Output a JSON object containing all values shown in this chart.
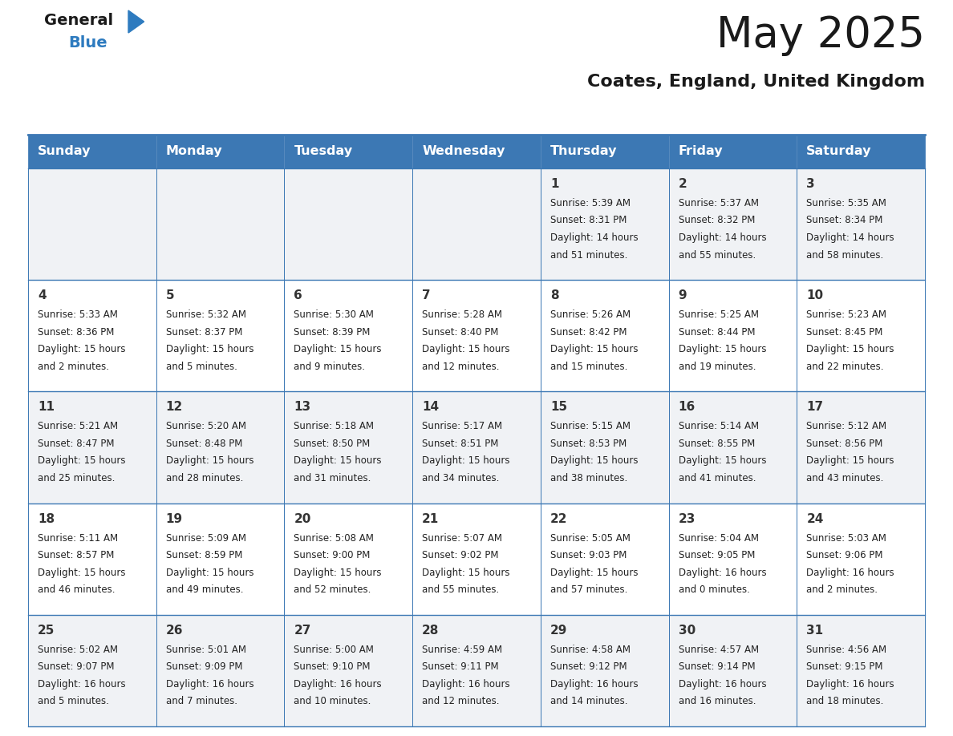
{
  "title": "May 2025",
  "subtitle": "Coates, England, United Kingdom",
  "header_bg": "#3c78b4",
  "header_text_color": "#ffffff",
  "cell_bg": "#f0f2f5",
  "cell_bg_white": "#ffffff",
  "text_color": "#222222",
  "day_num_color": "#333333",
  "line_color": "#3c78b4",
  "logo_blue": "#2e7bbf",
  "logo_text_color": "#1a1a1a",
  "days_of_week": [
    "Sunday",
    "Monday",
    "Tuesday",
    "Wednesday",
    "Thursday",
    "Friday",
    "Saturday"
  ],
  "calendar": [
    [
      {
        "day": "",
        "info": ""
      },
      {
        "day": "",
        "info": ""
      },
      {
        "day": "",
        "info": ""
      },
      {
        "day": "",
        "info": ""
      },
      {
        "day": "1",
        "info": "Sunrise: 5:39 AM\nSunset: 8:31 PM\nDaylight: 14 hours\nand 51 minutes."
      },
      {
        "day": "2",
        "info": "Sunrise: 5:37 AM\nSunset: 8:32 PM\nDaylight: 14 hours\nand 55 minutes."
      },
      {
        "day": "3",
        "info": "Sunrise: 5:35 AM\nSunset: 8:34 PM\nDaylight: 14 hours\nand 58 minutes."
      }
    ],
    [
      {
        "day": "4",
        "info": "Sunrise: 5:33 AM\nSunset: 8:36 PM\nDaylight: 15 hours\nand 2 minutes."
      },
      {
        "day": "5",
        "info": "Sunrise: 5:32 AM\nSunset: 8:37 PM\nDaylight: 15 hours\nand 5 minutes."
      },
      {
        "day": "6",
        "info": "Sunrise: 5:30 AM\nSunset: 8:39 PM\nDaylight: 15 hours\nand 9 minutes."
      },
      {
        "day": "7",
        "info": "Sunrise: 5:28 AM\nSunset: 8:40 PM\nDaylight: 15 hours\nand 12 minutes."
      },
      {
        "day": "8",
        "info": "Sunrise: 5:26 AM\nSunset: 8:42 PM\nDaylight: 15 hours\nand 15 minutes."
      },
      {
        "day": "9",
        "info": "Sunrise: 5:25 AM\nSunset: 8:44 PM\nDaylight: 15 hours\nand 19 minutes."
      },
      {
        "day": "10",
        "info": "Sunrise: 5:23 AM\nSunset: 8:45 PM\nDaylight: 15 hours\nand 22 minutes."
      }
    ],
    [
      {
        "day": "11",
        "info": "Sunrise: 5:21 AM\nSunset: 8:47 PM\nDaylight: 15 hours\nand 25 minutes."
      },
      {
        "day": "12",
        "info": "Sunrise: 5:20 AM\nSunset: 8:48 PM\nDaylight: 15 hours\nand 28 minutes."
      },
      {
        "day": "13",
        "info": "Sunrise: 5:18 AM\nSunset: 8:50 PM\nDaylight: 15 hours\nand 31 minutes."
      },
      {
        "day": "14",
        "info": "Sunrise: 5:17 AM\nSunset: 8:51 PM\nDaylight: 15 hours\nand 34 minutes."
      },
      {
        "day": "15",
        "info": "Sunrise: 5:15 AM\nSunset: 8:53 PM\nDaylight: 15 hours\nand 38 minutes."
      },
      {
        "day": "16",
        "info": "Sunrise: 5:14 AM\nSunset: 8:55 PM\nDaylight: 15 hours\nand 41 minutes."
      },
      {
        "day": "17",
        "info": "Sunrise: 5:12 AM\nSunset: 8:56 PM\nDaylight: 15 hours\nand 43 minutes."
      }
    ],
    [
      {
        "day": "18",
        "info": "Sunrise: 5:11 AM\nSunset: 8:57 PM\nDaylight: 15 hours\nand 46 minutes."
      },
      {
        "day": "19",
        "info": "Sunrise: 5:09 AM\nSunset: 8:59 PM\nDaylight: 15 hours\nand 49 minutes."
      },
      {
        "day": "20",
        "info": "Sunrise: 5:08 AM\nSunset: 9:00 PM\nDaylight: 15 hours\nand 52 minutes."
      },
      {
        "day": "21",
        "info": "Sunrise: 5:07 AM\nSunset: 9:02 PM\nDaylight: 15 hours\nand 55 minutes."
      },
      {
        "day": "22",
        "info": "Sunrise: 5:05 AM\nSunset: 9:03 PM\nDaylight: 15 hours\nand 57 minutes."
      },
      {
        "day": "23",
        "info": "Sunrise: 5:04 AM\nSunset: 9:05 PM\nDaylight: 16 hours\nand 0 minutes."
      },
      {
        "day": "24",
        "info": "Sunrise: 5:03 AM\nSunset: 9:06 PM\nDaylight: 16 hours\nand 2 minutes."
      }
    ],
    [
      {
        "day": "25",
        "info": "Sunrise: 5:02 AM\nSunset: 9:07 PM\nDaylight: 16 hours\nand 5 minutes."
      },
      {
        "day": "26",
        "info": "Sunrise: 5:01 AM\nSunset: 9:09 PM\nDaylight: 16 hours\nand 7 minutes."
      },
      {
        "day": "27",
        "info": "Sunrise: 5:00 AM\nSunset: 9:10 PM\nDaylight: 16 hours\nand 10 minutes."
      },
      {
        "day": "28",
        "info": "Sunrise: 4:59 AM\nSunset: 9:11 PM\nDaylight: 16 hours\nand 12 minutes."
      },
      {
        "day": "29",
        "info": "Sunrise: 4:58 AM\nSunset: 9:12 PM\nDaylight: 16 hours\nand 14 minutes."
      },
      {
        "day": "30",
        "info": "Sunrise: 4:57 AM\nSunset: 9:14 PM\nDaylight: 16 hours\nand 16 minutes."
      },
      {
        "day": "31",
        "info": "Sunrise: 4:56 AM\nSunset: 9:15 PM\nDaylight: 16 hours\nand 18 minutes."
      }
    ]
  ],
  "figsize": [
    11.88,
    9.18
  ],
  "dpi": 100
}
